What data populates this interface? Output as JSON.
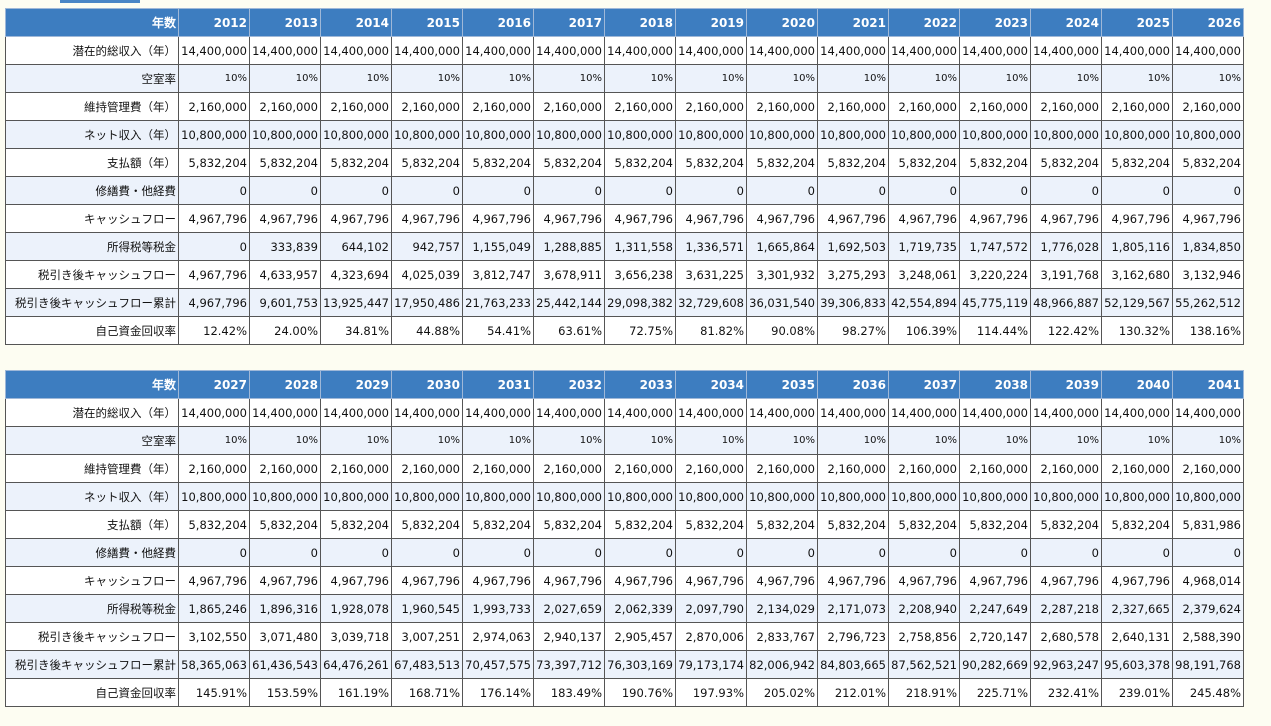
{
  "tables": [
    {
      "header": "年数",
      "years": [
        "2012",
        "2013",
        "2014",
        "2015",
        "2016",
        "2017",
        "2018",
        "2019",
        "2020",
        "2021",
        "2022",
        "2023",
        "2024",
        "2025",
        "2026"
      ],
      "rows": [
        {
          "label": "潜在的総収入（年）",
          "cells": [
            "14,400,000",
            "14,400,000",
            "14,400,000",
            "14,400,000",
            "14,400,000",
            "14,400,000",
            "14,400,000",
            "14,400,000",
            "14,400,000",
            "14,400,000",
            "14,400,000",
            "14,400,000",
            "14,400,000",
            "14,400,000",
            "14,400,000"
          ]
        },
        {
          "label": "空室率",
          "cells": [
            "10%",
            "10%",
            "10%",
            "10%",
            "10%",
            "10%",
            "10%",
            "10%",
            "10%",
            "10%",
            "10%",
            "10%",
            "10%",
            "10%",
            "10%"
          ]
        },
        {
          "label": "維持管理費（年）",
          "cells": [
            "2,160,000",
            "2,160,000",
            "2,160,000",
            "2,160,000",
            "2,160,000",
            "2,160,000",
            "2,160,000",
            "2,160,000",
            "2,160,000",
            "2,160,000",
            "2,160,000",
            "2,160,000",
            "2,160,000",
            "2,160,000",
            "2,160,000"
          ]
        },
        {
          "label": "ネット収入（年）",
          "cells": [
            "10,800,000",
            "10,800,000",
            "10,800,000",
            "10,800,000",
            "10,800,000",
            "10,800,000",
            "10,800,000",
            "10,800,000",
            "10,800,000",
            "10,800,000",
            "10,800,000",
            "10,800,000",
            "10,800,000",
            "10,800,000",
            "10,800,000"
          ]
        },
        {
          "label": "支払額（年）",
          "cells": [
            "5,832,204",
            "5,832,204",
            "5,832,204",
            "5,832,204",
            "5,832,204",
            "5,832,204",
            "5,832,204",
            "5,832,204",
            "5,832,204",
            "5,832,204",
            "5,832,204",
            "5,832,204",
            "5,832,204",
            "5,832,204",
            "5,832,204"
          ]
        },
        {
          "label": "修繕費・他経費",
          "cells": [
            "0",
            "0",
            "0",
            "0",
            "0",
            "0",
            "0",
            "0",
            "0",
            "0",
            "0",
            "0",
            "0",
            "0",
            "0"
          ]
        },
        {
          "label": "キャッシュフロー",
          "cells": [
            "4,967,796",
            "4,967,796",
            "4,967,796",
            "4,967,796",
            "4,967,796",
            "4,967,796",
            "4,967,796",
            "4,967,796",
            "4,967,796",
            "4,967,796",
            "4,967,796",
            "4,967,796",
            "4,967,796",
            "4,967,796",
            "4,967,796"
          ]
        },
        {
          "label": "所得税等税金",
          "cells": [
            "0",
            "333,839",
            "644,102",
            "942,757",
            "1,155,049",
            "1,288,885",
            "1,311,558",
            "1,336,571",
            "1,665,864",
            "1,692,503",
            "1,719,735",
            "1,747,572",
            "1,776,028",
            "1,805,116",
            "1,834,850"
          ]
        },
        {
          "label": "税引き後キャッシュフロー",
          "cells": [
            "4,967,796",
            "4,633,957",
            "4,323,694",
            "4,025,039",
            "3,812,747",
            "3,678,911",
            "3,656,238",
            "3,631,225",
            "3,301,932",
            "3,275,293",
            "3,248,061",
            "3,220,224",
            "3,191,768",
            "3,162,680",
            "3,132,946"
          ]
        },
        {
          "label": "税引き後キャッシュフロー累計",
          "cells": [
            "4,967,796",
            "9,601,753",
            "13,925,447",
            "17,950,486",
            "21,763,233",
            "25,442,144",
            "29,098,382",
            "32,729,608",
            "36,031,540",
            "39,306,833",
            "42,554,894",
            "45,775,119",
            "48,966,887",
            "52,129,567",
            "55,262,512"
          ]
        },
        {
          "label": "自己資金回収率",
          "cells": [
            "12.42%",
            "24.00%",
            "34.81%",
            "44.88%",
            "54.41%",
            "63.61%",
            "72.75%",
            "81.82%",
            "90.08%",
            "98.27%",
            "106.39%",
            "114.44%",
            "122.42%",
            "130.32%",
            "138.16%"
          ]
        }
      ]
    },
    {
      "header": "年数",
      "years": [
        "2027",
        "2028",
        "2029",
        "2030",
        "2031",
        "2032",
        "2033",
        "2034",
        "2035",
        "2036",
        "2037",
        "2038",
        "2039",
        "2040",
        "2041"
      ],
      "rows": [
        {
          "label": "潜在的総収入（年）",
          "cells": [
            "14,400,000",
            "14,400,000",
            "14,400,000",
            "14,400,000",
            "14,400,000",
            "14,400,000",
            "14,400,000",
            "14,400,000",
            "14,400,000",
            "14,400,000",
            "14,400,000",
            "14,400,000",
            "14,400,000",
            "14,400,000",
            "14,400,000"
          ]
        },
        {
          "label": "空室率",
          "cells": [
            "10%",
            "10%",
            "10%",
            "10%",
            "10%",
            "10%",
            "10%",
            "10%",
            "10%",
            "10%",
            "10%",
            "10%",
            "10%",
            "10%",
            "10%"
          ]
        },
        {
          "label": "維持管理費（年）",
          "cells": [
            "2,160,000",
            "2,160,000",
            "2,160,000",
            "2,160,000",
            "2,160,000",
            "2,160,000",
            "2,160,000",
            "2,160,000",
            "2,160,000",
            "2,160,000",
            "2,160,000",
            "2,160,000",
            "2,160,000",
            "2,160,000",
            "2,160,000"
          ]
        },
        {
          "label": "ネット収入（年）",
          "cells": [
            "10,800,000",
            "10,800,000",
            "10,800,000",
            "10,800,000",
            "10,800,000",
            "10,800,000",
            "10,800,000",
            "10,800,000",
            "10,800,000",
            "10,800,000",
            "10,800,000",
            "10,800,000",
            "10,800,000",
            "10,800,000",
            "10,800,000"
          ]
        },
        {
          "label": "支払額（年）",
          "cells": [
            "5,832,204",
            "5,832,204",
            "5,832,204",
            "5,832,204",
            "5,832,204",
            "5,832,204",
            "5,832,204",
            "5,832,204",
            "5,832,204",
            "5,832,204",
            "5,832,204",
            "5,832,204",
            "5,832,204",
            "5,832,204",
            "5,831,986"
          ]
        },
        {
          "label": "修繕費・他経費",
          "cells": [
            "0",
            "0",
            "0",
            "0",
            "0",
            "0",
            "0",
            "0",
            "0",
            "0",
            "0",
            "0",
            "0",
            "0",
            "0"
          ]
        },
        {
          "label": "キャッシュフロー",
          "cells": [
            "4,967,796",
            "4,967,796",
            "4,967,796",
            "4,967,796",
            "4,967,796",
            "4,967,796",
            "4,967,796",
            "4,967,796",
            "4,967,796",
            "4,967,796",
            "4,967,796",
            "4,967,796",
            "4,967,796",
            "4,967,796",
            "4,968,014"
          ]
        },
        {
          "label": "所得税等税金",
          "cells": [
            "1,865,246",
            "1,896,316",
            "1,928,078",
            "1,960,545",
            "1,993,733",
            "2,027,659",
            "2,062,339",
            "2,097,790",
            "2,134,029",
            "2,171,073",
            "2,208,940",
            "2,247,649",
            "2,287,218",
            "2,327,665",
            "2,379,624"
          ]
        },
        {
          "label": "税引き後キャッシュフロー",
          "cells": [
            "3,102,550",
            "3,071,480",
            "3,039,718",
            "3,007,251",
            "2,974,063",
            "2,940,137",
            "2,905,457",
            "2,870,006",
            "2,833,767",
            "2,796,723",
            "2,758,856",
            "2,720,147",
            "2,680,578",
            "2,640,131",
            "2,588,390"
          ]
        },
        {
          "label": "税引き後キャッシュフロー累計",
          "cells": [
            "58,365,063",
            "61,436,543",
            "64,476,261",
            "67,483,513",
            "70,457,575",
            "73,397,712",
            "76,303,169",
            "79,173,174",
            "82,006,942",
            "84,803,665",
            "87,562,521",
            "90,282,669",
            "92,963,247",
            "95,603,378",
            "98,191,768"
          ]
        },
        {
          "label": "自己資金回収率",
          "cells": [
            "145.91%",
            "153.59%",
            "161.19%",
            "168.71%",
            "176.14%",
            "183.49%",
            "190.76%",
            "197.93%",
            "205.02%",
            "212.01%",
            "218.91%",
            "225.71%",
            "232.41%",
            "239.01%",
            "245.48%"
          ]
        }
      ]
    }
  ]
}
